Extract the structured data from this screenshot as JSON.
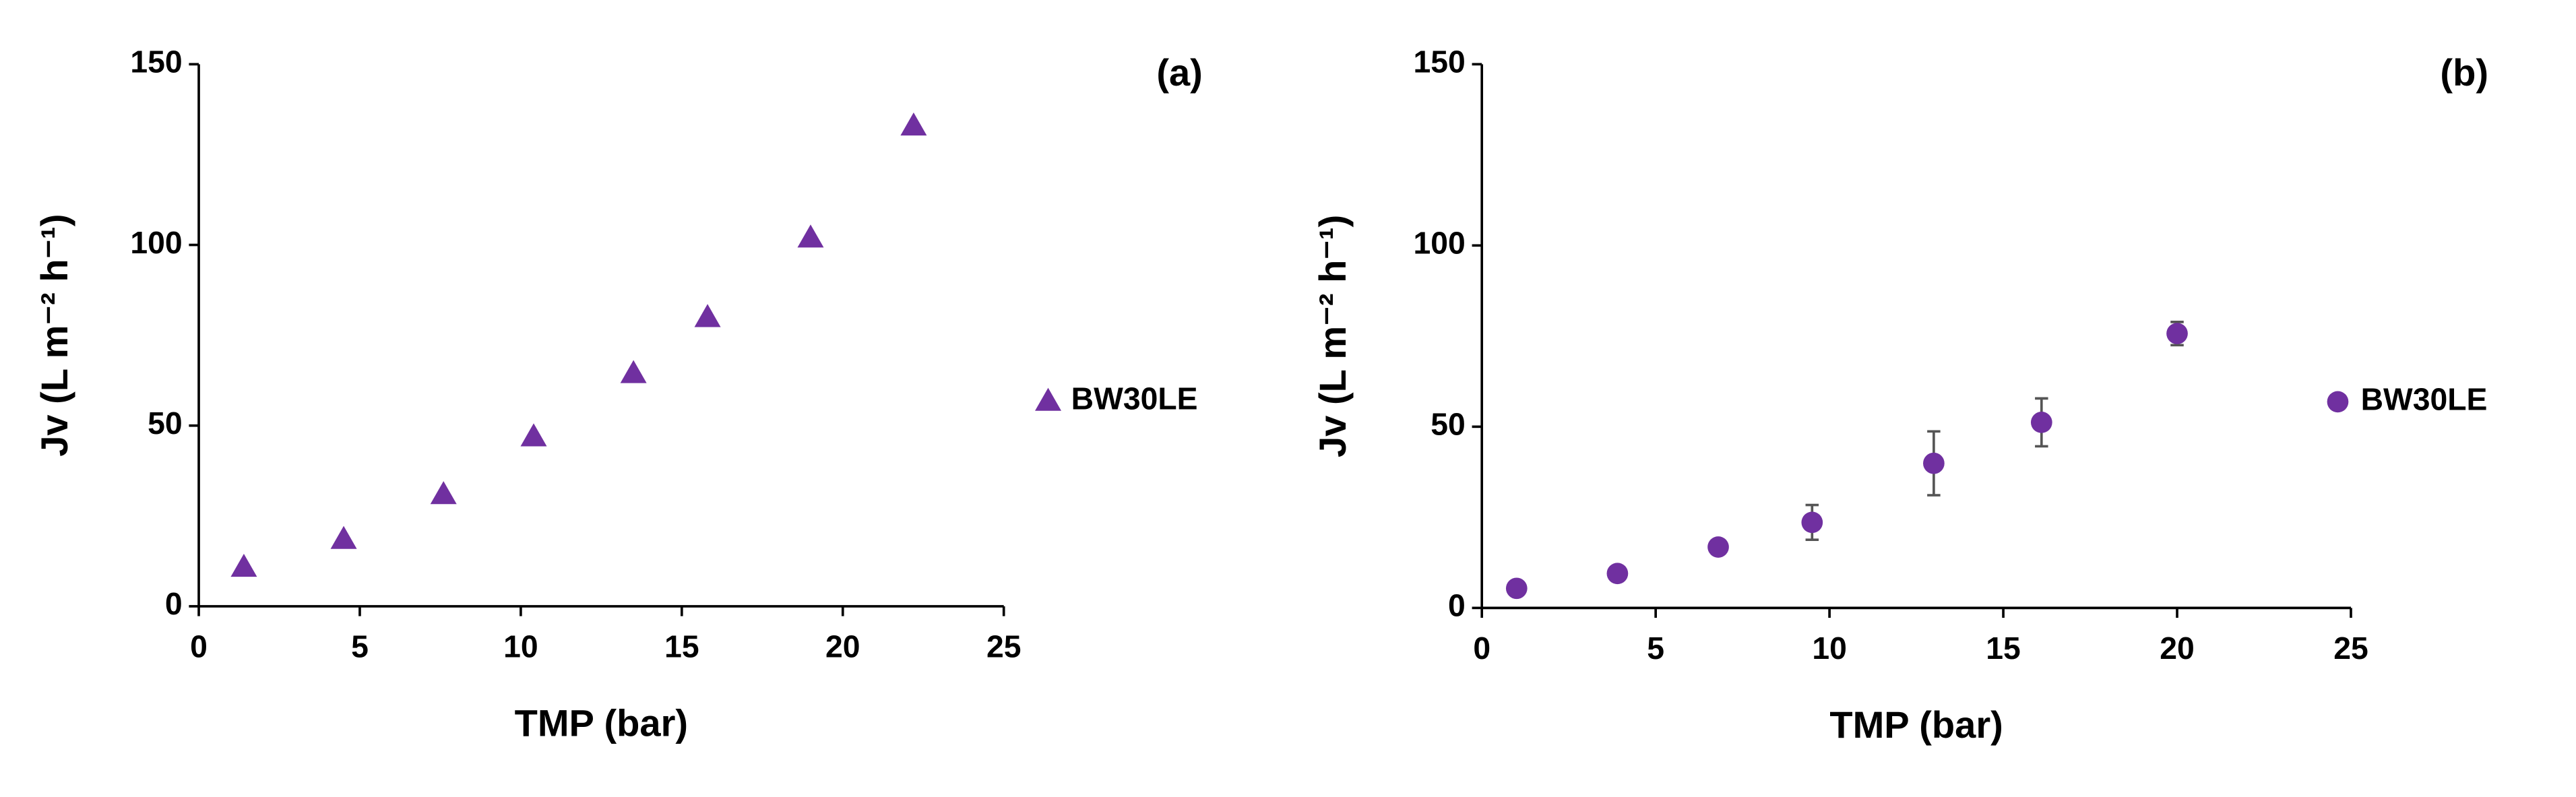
{
  "chart_data": [
    {
      "type": "scatter",
      "panel_label": "(a)",
      "x_label": "TMP (bar)",
      "y_label": "Jv (L m⁻² h⁻¹)",
      "xlim": [
        0,
        25
      ],
      "xticks": [
        0,
        5,
        10,
        15,
        20,
        25
      ],
      "ylim": [
        0,
        150
      ],
      "yticks": [
        0,
        50,
        100,
        150
      ],
      "legend": "right",
      "marker": "triangle",
      "series": [
        {
          "name": "BW30LE",
          "color": "#7030a0",
          "x": [
            1.4,
            4.5,
            7.6,
            10.4,
            13.5,
            15.8,
            19.0,
            22.2
          ],
          "values": [
            10.9,
            18.6,
            31,
            47,
            64.5,
            80,
            102,
            133
          ]
        }
      ]
    },
    {
      "type": "scatter",
      "panel_label": "(b)",
      "x_label": "TMP (bar)",
      "y_label": "Jv (L m⁻² h⁻¹)",
      "xlim": [
        0,
        25
      ],
      "xticks": [
        0,
        5,
        10,
        15,
        20,
        25
      ],
      "ylim": [
        0,
        150
      ],
      "yticks": [
        0,
        50,
        100,
        150
      ],
      "legend": "right",
      "marker": "circle",
      "series": [
        {
          "name": "BW30LE",
          "color": "#7030a0",
          "x": [
            1.0,
            3.9,
            6.8,
            9.5,
            13.0,
            16.1,
            20.0
          ],
          "values": [
            5.4,
            9.5,
            16.8,
            23.6,
            39.9,
            51.2,
            75.7
          ],
          "errors": [
            0.5,
            0.8,
            1.5,
            4.8,
            8.8,
            6.6,
            3.2
          ]
        }
      ]
    }
  ]
}
